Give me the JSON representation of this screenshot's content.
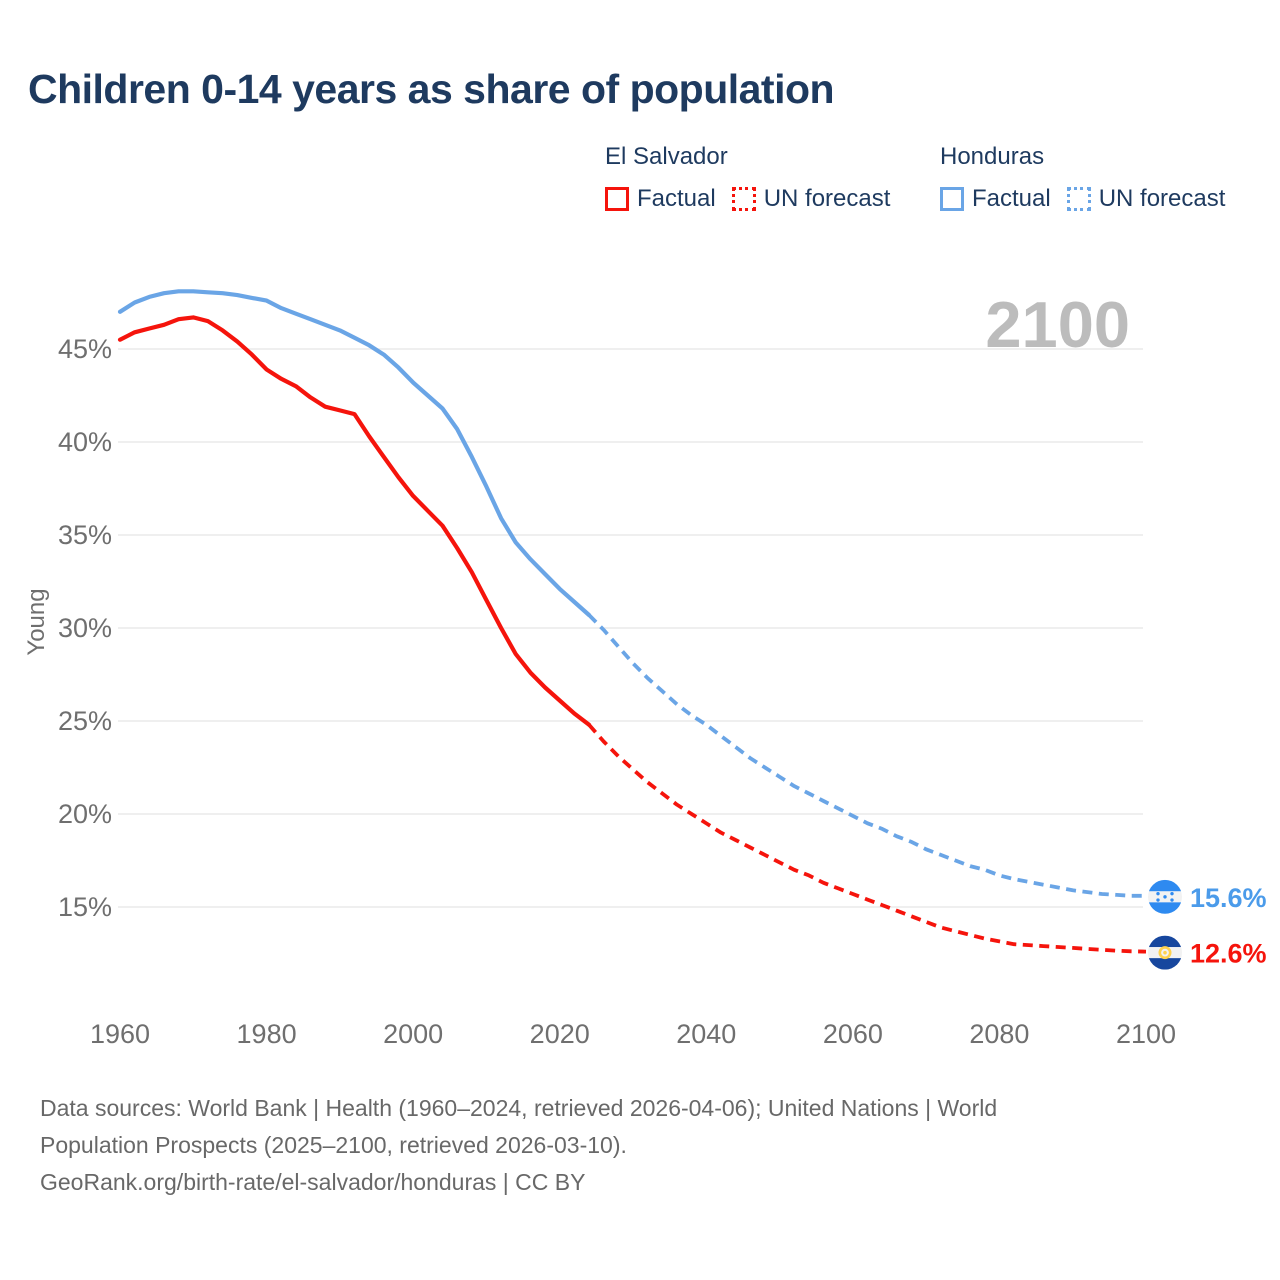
{
  "title": "Children 0-14 years as share of population",
  "watermark": "2100",
  "legend": {
    "groups": [
      {
        "country": "El Salvador",
        "series_color": "red",
        "items": [
          {
            "label": "Factual",
            "style": "solid"
          },
          {
            "label": "UN forecast",
            "style": "dotted"
          }
        ]
      },
      {
        "country": "Honduras",
        "series_color": "blue",
        "items": [
          {
            "label": "Factual",
            "style": "solid"
          },
          {
            "label": "UN forecast",
            "style": "dotted"
          }
        ]
      }
    ]
  },
  "end_labels": [
    {
      "value": "15.6%",
      "y_value": 15.6,
      "flag": "honduras-flag-icon",
      "color": "blue"
    },
    {
      "value": "12.6%",
      "y_value": 12.6,
      "flag": "el-salvador-flag-icon",
      "color": "red"
    }
  ],
  "footer": {
    "lines": [
      "Data sources: World Bank | Health (1960–2024, retrieved 2026-04-06); United Nations | World",
      "Population Prospects (2025–2100, retrieved 2026-03-10).",
      "GeoRank.org/birth-rate/el-salvador/honduras | CC BY"
    ]
  },
  "colors": {
    "red_line": "#f5140c",
    "blue_line": "#6aa5e6",
    "navy": "#1e3a5f",
    "tick_gray": "#6f6f6f",
    "grid_gray": "#eaeaea",
    "watermark_gray": "#bcbcbc",
    "footer_gray": "#686868",
    "end_label_blue": "#4b9bea",
    "end_label_red": "#f5140c",
    "flag_honduras_blue": "#2e8af0",
    "flag_salvador_navy": "#17479e",
    "flag_salvador_gold": "#ffd24d",
    "flag_white_band": "#f2f2f2"
  },
  "chart_data": {
    "type": "line",
    "title": "Children 0-14 years as share of population",
    "xlabel": "",
    "ylabel": "Young",
    "xlim": [
      1960,
      2100
    ],
    "ylim": [
      12,
      49
    ],
    "grid": true,
    "legend_position": "top-right",
    "x_ticks": [
      1960,
      1980,
      2000,
      2020,
      2040,
      2060,
      2080,
      2100
    ],
    "y_ticks": [
      45,
      40,
      35,
      30,
      25,
      20,
      15
    ],
    "y_tick_suffix": "%",
    "series": [
      {
        "name": "El Salvador — Factual",
        "country": "El Salvador",
        "kind": "factual",
        "color": "red",
        "style": "solid",
        "points": [
          [
            1960,
            45.5
          ],
          [
            1962,
            45.9
          ],
          [
            1964,
            46.1
          ],
          [
            1966,
            46.3
          ],
          [
            1968,
            46.6
          ],
          [
            1970,
            46.7
          ],
          [
            1972,
            46.5
          ],
          [
            1974,
            46.0
          ],
          [
            1976,
            45.4
          ],
          [
            1978,
            44.7
          ],
          [
            1980,
            43.9
          ],
          [
            1982,
            43.4
          ],
          [
            1984,
            43.0
          ],
          [
            1986,
            42.4
          ],
          [
            1988,
            41.9
          ],
          [
            1990,
            41.7
          ],
          [
            1992,
            41.5
          ],
          [
            1994,
            40.3
          ],
          [
            1996,
            39.2
          ],
          [
            1998,
            38.1
          ],
          [
            2000,
            37.1
          ],
          [
            2002,
            36.3
          ],
          [
            2004,
            35.5
          ],
          [
            2006,
            34.3
          ],
          [
            2008,
            33.0
          ],
          [
            2010,
            31.5
          ],
          [
            2012,
            30.0
          ],
          [
            2014,
            28.6
          ],
          [
            2016,
            27.6
          ],
          [
            2018,
            26.8
          ],
          [
            2020,
            26.1
          ],
          [
            2022,
            25.4
          ],
          [
            2024,
            24.8
          ]
        ]
      },
      {
        "name": "El Salvador — UN forecast",
        "country": "El Salvador",
        "kind": "forecast",
        "color": "red",
        "style": "dashed",
        "points": [
          [
            2024,
            24.8
          ],
          [
            2026,
            23.9
          ],
          [
            2028,
            23.1
          ],
          [
            2030,
            22.4
          ],
          [
            2032,
            21.7
          ],
          [
            2034,
            21.1
          ],
          [
            2036,
            20.5
          ],
          [
            2038,
            20.0
          ],
          [
            2040,
            19.5
          ],
          [
            2042,
            19.0
          ],
          [
            2044,
            18.6
          ],
          [
            2046,
            18.2
          ],
          [
            2048,
            17.8
          ],
          [
            2050,
            17.4
          ],
          [
            2052,
            17.0
          ],
          [
            2054,
            16.7
          ],
          [
            2056,
            16.3
          ],
          [
            2058,
            16.0
          ],
          [
            2060,
            15.7
          ],
          [
            2062,
            15.4
          ],
          [
            2064,
            15.1
          ],
          [
            2066,
            14.8
          ],
          [
            2068,
            14.5
          ],
          [
            2070,
            14.2
          ],
          [
            2072,
            13.9
          ],
          [
            2074,
            13.7
          ],
          [
            2076,
            13.5
          ],
          [
            2078,
            13.3
          ],
          [
            2080,
            13.15
          ],
          [
            2082,
            13.0
          ],
          [
            2084,
            12.95
          ],
          [
            2086,
            12.9
          ],
          [
            2088,
            12.85
          ],
          [
            2090,
            12.8
          ],
          [
            2092,
            12.75
          ],
          [
            2094,
            12.7
          ],
          [
            2096,
            12.65
          ],
          [
            2098,
            12.62
          ],
          [
            2100,
            12.6
          ]
        ]
      },
      {
        "name": "Honduras — Factual",
        "country": "Honduras",
        "kind": "factual",
        "color": "blue",
        "style": "solid",
        "points": [
          [
            1960,
            47.0
          ],
          [
            1962,
            47.5
          ],
          [
            1964,
            47.8
          ],
          [
            1966,
            48.0
          ],
          [
            1968,
            48.1
          ],
          [
            1970,
            48.1
          ],
          [
            1972,
            48.05
          ],
          [
            1974,
            48.0
          ],
          [
            1976,
            47.9
          ],
          [
            1978,
            47.75
          ],
          [
            1980,
            47.6
          ],
          [
            1982,
            47.2
          ],
          [
            1984,
            46.9
          ],
          [
            1986,
            46.6
          ],
          [
            1988,
            46.3
          ],
          [
            1990,
            46.0
          ],
          [
            1992,
            45.6
          ],
          [
            1994,
            45.2
          ],
          [
            1996,
            44.7
          ],
          [
            1998,
            44.0
          ],
          [
            2000,
            43.2
          ],
          [
            2002,
            42.5
          ],
          [
            2004,
            41.8
          ],
          [
            2006,
            40.7
          ],
          [
            2008,
            39.2
          ],
          [
            2010,
            37.6
          ],
          [
            2012,
            35.9
          ],
          [
            2014,
            34.6
          ],
          [
            2016,
            33.7
          ],
          [
            2018,
            32.9
          ],
          [
            2020,
            32.1
          ],
          [
            2022,
            31.4
          ],
          [
            2024,
            30.7
          ]
        ]
      },
      {
        "name": "Honduras — UN forecast",
        "country": "Honduras",
        "kind": "forecast",
        "color": "blue",
        "style": "dashed",
        "points": [
          [
            2024,
            30.7
          ],
          [
            2026,
            29.9
          ],
          [
            2028,
            29.0
          ],
          [
            2030,
            28.1
          ],
          [
            2032,
            27.3
          ],
          [
            2034,
            26.6
          ],
          [
            2036,
            25.9
          ],
          [
            2038,
            25.3
          ],
          [
            2040,
            24.8
          ],
          [
            2042,
            24.2
          ],
          [
            2044,
            23.6
          ],
          [
            2046,
            23.0
          ],
          [
            2048,
            22.5
          ],
          [
            2050,
            22.0
          ],
          [
            2052,
            21.5
          ],
          [
            2054,
            21.1
          ],
          [
            2056,
            20.7
          ],
          [
            2058,
            20.3
          ],
          [
            2060,
            19.9
          ],
          [
            2062,
            19.5
          ],
          [
            2064,
            19.2
          ],
          [
            2066,
            18.8
          ],
          [
            2068,
            18.5
          ],
          [
            2070,
            18.1
          ],
          [
            2072,
            17.8
          ],
          [
            2074,
            17.5
          ],
          [
            2076,
            17.2
          ],
          [
            2078,
            17.0
          ],
          [
            2080,
            16.7
          ],
          [
            2082,
            16.5
          ],
          [
            2084,
            16.35
          ],
          [
            2086,
            16.2
          ],
          [
            2088,
            16.05
          ],
          [
            2090,
            15.9
          ],
          [
            2092,
            15.8
          ],
          [
            2094,
            15.7
          ],
          [
            2096,
            15.65
          ],
          [
            2098,
            15.6
          ],
          [
            2100,
            15.6
          ]
        ]
      }
    ]
  }
}
